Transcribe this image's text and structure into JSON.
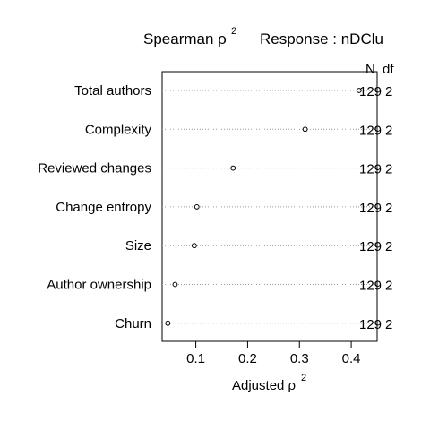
{
  "chart_data": {
    "type": "scatter",
    "title": {
      "left": "Spearman ρ",
      "left_sup": "2",
      "right": "Response : nDClu"
    },
    "xlabel": {
      "text": "Adjusted ρ",
      "sup": "2"
    },
    "xlim": [
      0.035,
      0.45
    ],
    "xticks": [
      "0.1",
      "0.2",
      "0.3",
      "0.4"
    ],
    "xtick_values": [
      0.1,
      0.2,
      0.3,
      0.4
    ],
    "right_headers": {
      "n": "N",
      "df": "df"
    },
    "categories": [
      "Total authors",
      "Complexity",
      "Reviewed changes",
      "Change entropy",
      "Size",
      "Author ownership",
      "Churn"
    ],
    "values": [
      0.415,
      0.311,
      0.172,
      0.102,
      0.097,
      0.06,
      0.046
    ],
    "n": [
      "129",
      "129",
      "129",
      "129",
      "129",
      "129",
      "129"
    ],
    "df": [
      "2",
      "2",
      "2",
      "2",
      "2",
      "2",
      "2"
    ],
    "grid": "dotted horizontal guide per row",
    "legend": "none"
  }
}
